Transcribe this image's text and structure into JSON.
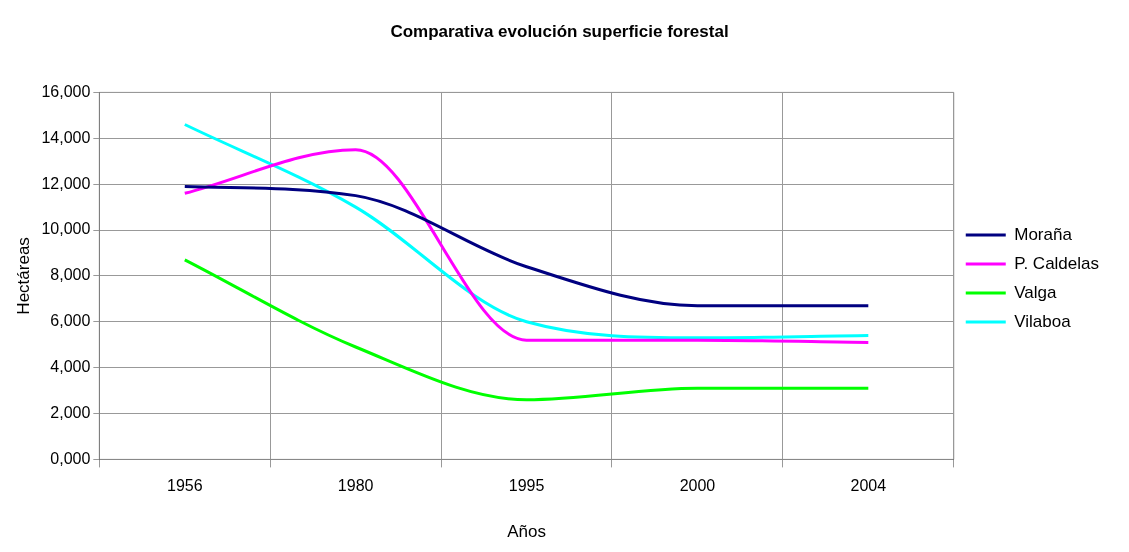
{
  "chart_data": {
    "type": "line",
    "title": "Comparativa evolución superficie forestal",
    "xlabel": "Años",
    "ylabel": "Hectáreas",
    "categories": [
      "1956",
      "1980",
      "1995",
      "2000",
      "2004"
    ],
    "series": [
      {
        "name": "Moraña",
        "color": "#000080",
        "values": [
          11900,
          11500,
          8400,
          6700,
          6700
        ]
      },
      {
        "name": "P. Caldelas",
        "color": "#ff00ff",
        "values": [
          11600,
          13500,
          5200,
          5200,
          5100
        ]
      },
      {
        "name": "Valga",
        "color": "#00ff00",
        "values": [
          8700,
          4900,
          2600,
          3100,
          3100
        ]
      },
      {
        "name": "Vilaboa",
        "color": "#00ffff",
        "values": [
          14600,
          11000,
          6000,
          5300,
          5400
        ]
      }
    ],
    "ylim": [
      0,
      16000
    ],
    "yticks": [
      {
        "value": 0,
        "label": "0,000"
      },
      {
        "value": 2000,
        "label": "2,000"
      },
      {
        "value": 4000,
        "label": "4,000"
      },
      {
        "value": 6000,
        "label": "6,000"
      },
      {
        "value": 8000,
        "label": "8,000"
      },
      {
        "value": 10000,
        "label": "10,000"
      },
      {
        "value": 12000,
        "label": "12,000"
      },
      {
        "value": 14000,
        "label": "14,000"
      },
      {
        "value": 16000,
        "label": "16,000"
      }
    ],
    "grid": true,
    "legend": "right",
    "marker": "none",
    "line_style": "solid"
  }
}
